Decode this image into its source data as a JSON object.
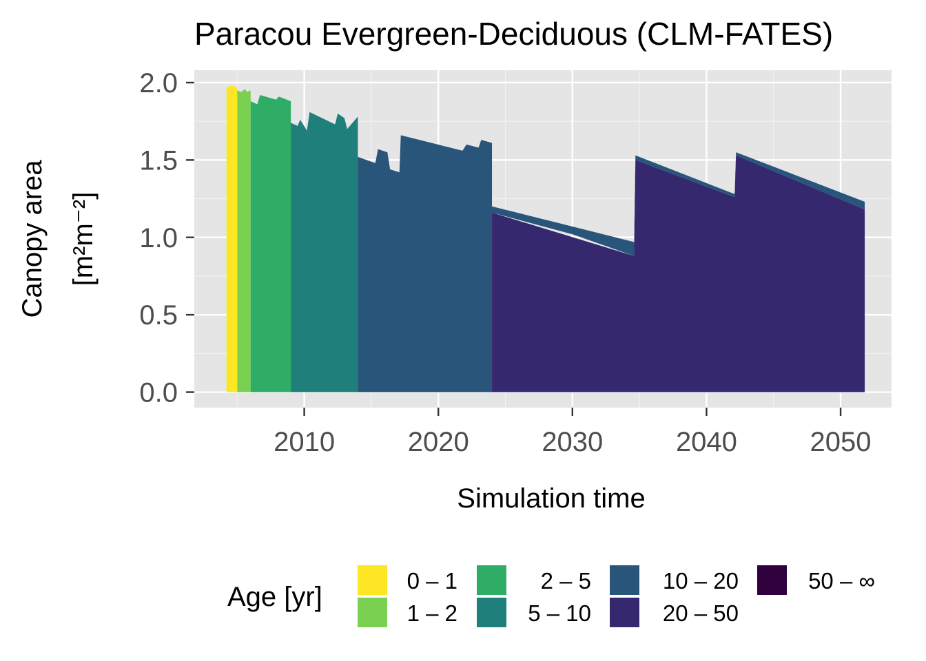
{
  "chart_data": {
    "type": "area",
    "title": "Paracou Evergreen-Deciduous (CLM-FATES)",
    "xlabel": "Simulation time",
    "ylabel_line1": "Canopy area",
    "ylabel_line2": "[m²m⁻²]",
    "xlim": [
      2001.8,
      2053.8
    ],
    "ylim": [
      -0.1,
      2.08
    ],
    "x_ticks": [
      2010,
      2020,
      2030,
      2040,
      2050
    ],
    "x_tick_labels": [
      "2010",
      "2020",
      "2030",
      "2040",
      "2050"
    ],
    "y_ticks": [
      0.0,
      0.5,
      1.0,
      1.5,
      2.0
    ],
    "y_tick_labels": [
      "0.0",
      "0.5",
      "1.0",
      "1.5",
      "2.0"
    ],
    "grid": true,
    "legend": {
      "title": "Age [yr]",
      "position": "bottom",
      "entries": [
        {
          "label": "0 – 1",
          "color": "#FDE725"
        },
        {
          "label": "1 – 2",
          "color": "#7AD151"
        },
        {
          "label": "2 – 5",
          "color": "#2FAC66"
        },
        {
          "label": "5 – 10",
          "color": "#1F7F7A"
        },
        {
          "label": "10 – 20",
          "color": "#29557A"
        },
        {
          "label": "20 – 50",
          "color": "#35286E"
        },
        {
          "label": "50 – ∞",
          "color": "#30003F"
        }
      ]
    },
    "bands": [
      {
        "name": "0 – 1",
        "color": "#FDE725",
        "x": [
          2004.2,
          2004.6,
          2005.0
        ],
        "y": [
          1.97,
          1.98,
          1.97
        ]
      },
      {
        "name": "1 – 2",
        "color": "#7AD151",
        "x": [
          2005.0,
          2005.3,
          2005.6,
          2005.7,
          2006.0
        ],
        "y": [
          1.95,
          1.94,
          1.96,
          1.94,
          1.95
        ]
      },
      {
        "name": "2 – 5",
        "color": "#2FAC66",
        "x": [
          2006.0,
          2006.5,
          2006.7,
          2007.5,
          2007.9,
          2008.1,
          2009.0
        ],
        "y": [
          1.88,
          1.86,
          1.92,
          1.9,
          1.89,
          1.91,
          1.88
        ]
      },
      {
        "name": "5 – 10",
        "color": "#1F7F7A",
        "x": [
          2009.0,
          2009.5,
          2009.7,
          2010.2,
          2010.4,
          2012.3,
          2012.5,
          2013.0,
          2013.2,
          2014.0
        ],
        "y": [
          1.74,
          1.72,
          1.76,
          1.69,
          1.81,
          1.73,
          1.8,
          1.77,
          1.7,
          1.78
        ]
      },
      {
        "name": "10 – 20",
        "color": "#29557A",
        "x": [
          2014.0,
          2015.3,
          2015.5,
          2016.2,
          2016.4,
          2017.1,
          2017.2,
          2021.8,
          2022.1,
          2023.0,
          2023.2,
          2024.0
        ],
        "y": [
          1.52,
          1.48,
          1.57,
          1.55,
          1.44,
          1.42,
          1.66,
          1.56,
          1.6,
          1.58,
          1.63,
          1.61
        ]
      },
      {
        "name": "20 – 50",
        "color": "#35286E",
        "x": [
          2024.0,
          2034.6,
          2034.7,
          2042.1,
          2042.2,
          2051.8
        ],
        "y": [
          1.16,
          0.88,
          1.5,
          1.26,
          1.53,
          1.18
        ]
      }
    ],
    "thin_band": {
      "name": "10 – 20",
      "color": "#29557A",
      "x": [
        2024.0,
        2030.0,
        2034.6,
        2034.7,
        2042.1,
        2042.2,
        2051.8
      ],
      "y_top": [
        1.2,
        1.07,
        0.97,
        1.53,
        1.28,
        1.55,
        1.23
      ],
      "y_bottom": [
        1.16,
        1.02,
        0.88,
        1.5,
        1.26,
        1.53,
        1.18
      ]
    }
  }
}
